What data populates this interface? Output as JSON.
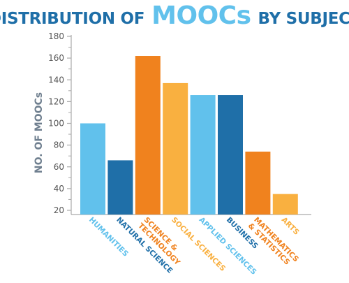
{
  "title": {
    "part1": "DISTRIBUTION OF",
    "accent": "MOOCs",
    "part2": "BY SUBJECT"
  },
  "colors": {
    "dark_blue": "#1f6fa8",
    "light_blue": "#61c1ec",
    "orange": "#f0821e",
    "light_orange": "#f9b040",
    "axis_gray": "#aaaaaa",
    "axis_label": "#6f7f8f"
  },
  "chart_data": {
    "type": "bar",
    "title": "DISTRIBUTION OF MOOCs BY SUBJECT",
    "xlabel": "",
    "ylabel": "NO. OF MOOCs",
    "categories": [
      "HUMANITIES",
      "NATURAL SCIENCE",
      "SCIENCE & TECHNOLOGY",
      "SOCIAL SCIENCES",
      "APPLIED SCIENCES",
      "BUSINESS",
      "MATHEMATICS & STATISTICS",
      "ARTS"
    ],
    "category_lines": [
      [
        "HUMANITIES"
      ],
      [
        "NATURAL SCIENCE"
      ],
      [
        "SCIENCE &",
        "TECHNOLOGY"
      ],
      [
        "SOCIAL SCIENCES"
      ],
      [
        "APPLIED SCIENCES"
      ],
      [
        "BUSINESS"
      ],
      [
        "MATHEMATICS",
        "& STATISTICS"
      ],
      [
        "ARTS"
      ]
    ],
    "values": [
      100,
      66,
      162,
      137,
      126,
      126,
      74,
      35
    ],
    "bar_colors": [
      "#61c1ec",
      "#1f6fa8",
      "#f0821e",
      "#f9b040",
      "#61c1ec",
      "#1f6fa8",
      "#f0821e",
      "#f9b040"
    ],
    "ylim": [
      20,
      180
    ],
    "yticks": [
      20,
      40,
      60,
      80,
      100,
      120,
      140,
      160,
      180
    ],
    "grid": false,
    "legend": "none"
  }
}
